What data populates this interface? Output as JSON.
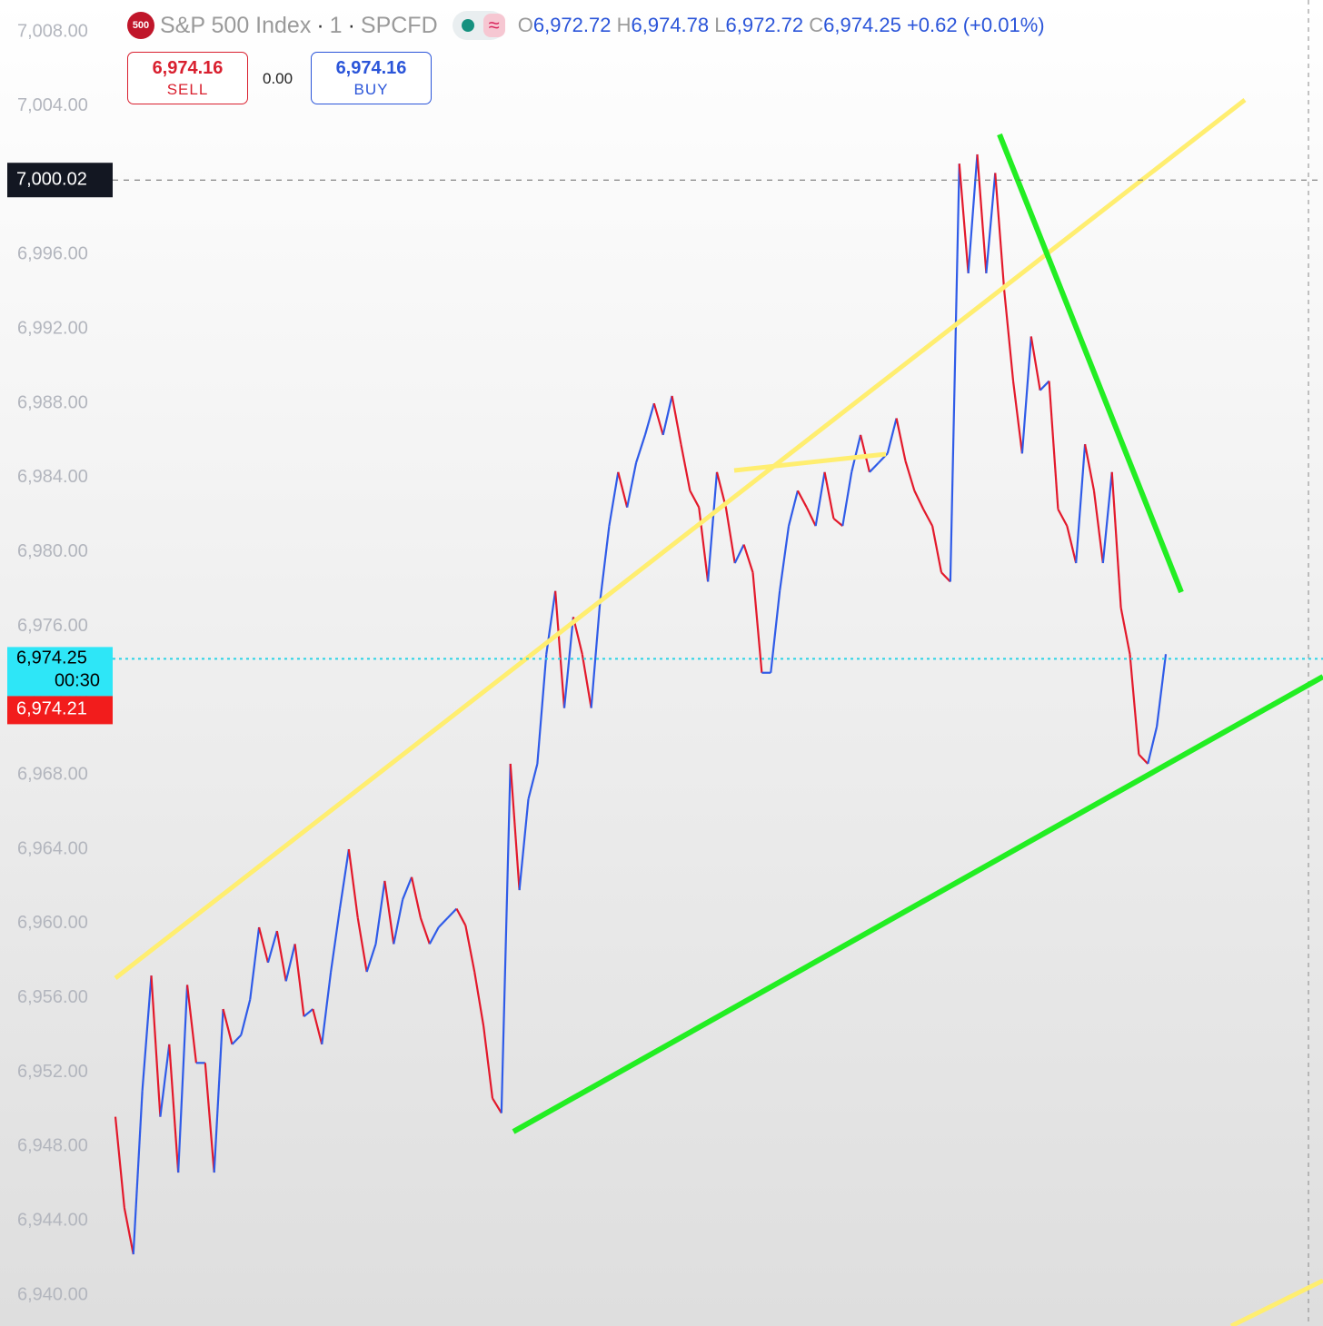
{
  "symbol_header": {
    "icon": "500",
    "name": "S&P 500 Index",
    "sep1": "·",
    "interval": "1",
    "sep2": "·",
    "exchange": "SPCFD",
    "approx": "≈",
    "o_letter": "O",
    "open": "6,972.72",
    "h_letter": "H",
    "high": "6,974.78",
    "l_letter": "L",
    "low": "6,972.72",
    "c_letter": "C",
    "close": "6,974.25",
    "change": "+0.62 (+0.01%)"
  },
  "trade_buttons": {
    "sell_price": "6,974.16",
    "sell_label": "SELL",
    "spread": "0.00",
    "buy_price": "6,974.16",
    "buy_label": "BUY"
  },
  "chart_data": {
    "type": "line",
    "ylim": [
      6938.34,
      7009.71
    ],
    "yticks": [
      {
        "value": 6940,
        "label": "6,940.00"
      },
      {
        "value": 6944,
        "label": "6,944.00"
      },
      {
        "value": 6948,
        "label": "6,948.00"
      },
      {
        "value": 6952,
        "label": "6,952.00"
      },
      {
        "value": 6956,
        "label": "6,956.00"
      },
      {
        "value": 6960,
        "label": "6,960.00"
      },
      {
        "value": 6964,
        "label": "6,964.00"
      },
      {
        "value": 6968,
        "label": "6,968.00"
      },
      {
        "value": 6972,
        "label": "6,972.00"
      },
      {
        "value": 6976,
        "label": "6,976.00"
      },
      {
        "value": 6980,
        "label": "6,980.00"
      },
      {
        "value": 6984,
        "label": "6,984.00"
      },
      {
        "value": 6988,
        "label": "6,988.00"
      },
      {
        "value": 6992,
        "label": "6,992.00"
      },
      {
        "value": 6996,
        "label": "6,996.00"
      },
      {
        "value": 7000,
        "label": "7,000.00"
      },
      {
        "value": 7004,
        "label": "7,004.00"
      },
      {
        "value": 7008,
        "label": "7,008.00"
      }
    ],
    "series": [
      {
        "up_color": "#2f5be8",
        "down_color": "#e3192b",
        "values": [
          6949.6,
          6944.7,
          6942.2,
          6951.0,
          6957.2,
          6949.6,
          6953.5,
          6946.6,
          6956.7,
          6952.5,
          6952.5,
          6946.6,
          6955.4,
          6953.5,
          6954.0,
          6955.9,
          6959.8,
          6957.9,
          6959.6,
          6956.9,
          6958.9,
          6955.0,
          6955.4,
          6953.5,
          6957.4,
          6960.8,
          6964.0,
          6960.3,
          6957.4,
          6958.9,
          6962.3,
          6958.9,
          6961.3,
          6962.5,
          6960.3,
          6958.9,
          6959.8,
          6960.3,
          6960.8,
          6959.9,
          6957.4,
          6954.5,
          6950.6,
          6949.8,
          6968.6,
          6961.8,
          6966.7,
          6968.6,
          6974.5,
          6977.9,
          6971.6,
          6976.5,
          6974.5,
          6971.6,
          6977.4,
          6981.4,
          6984.3,
          6982.4,
          6984.8,
          6986.3,
          6988.0,
          6986.3,
          6988.4,
          6985.8,
          6983.3,
          6982.4,
          6978.4,
          6984.3,
          6982.4,
          6979.4,
          6980.4,
          6978.9,
          6973.5,
          6973.5,
          6977.9,
          6981.4,
          6983.3,
          6982.4,
          6981.4,
          6984.3,
          6981.8,
          6981.4,
          6984.3,
          6986.3,
          6984.3,
          6984.8,
          6985.3,
          6987.2,
          6984.9,
          6983.3,
          6982.3,
          6981.4,
          6978.9,
          6978.4,
          7000.9,
          6995.0,
          7001.4,
          6995.0,
          7000.4,
          6994.1,
          6989.2,
          6985.3,
          6991.6,
          6988.7,
          6989.2,
          6982.3,
          6981.4,
          6979.4,
          6985.8,
          6983.3,
          6979.4,
          6984.3,
          6977.0,
          6974.5,
          6969.1,
          6968.6,
          6970.6,
          6974.5
        ]
      }
    ],
    "price_lines": [
      {
        "value": 7000.02,
        "label": "7,000.02"
      },
      {
        "value": 6974.25,
        "label": "6,974.25",
        "timer": "00:30"
      }
    ],
    "bid_tag": {
      "value": 6974.21,
      "label": "6,974.21"
    }
  }
}
